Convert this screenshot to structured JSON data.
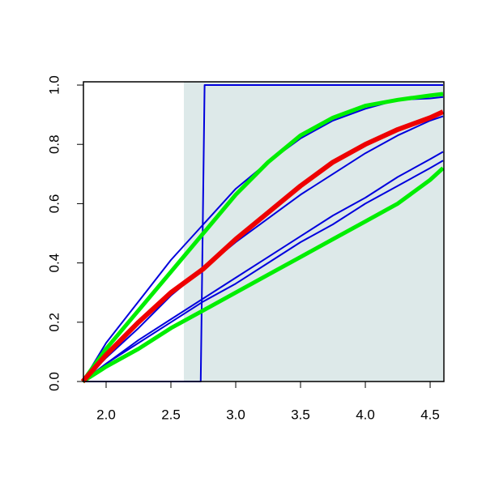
{
  "chart_data": {
    "type": "line",
    "x": [
      1.82,
      2.0,
      2.25,
      2.5,
      2.75,
      3.0,
      3.25,
      3.5,
      3.75,
      4.0,
      4.25,
      4.5,
      4.6
    ],
    "series": [
      {
        "color": "#0000dd",
        "line_width": 2,
        "x": [
          1.82,
          2.73,
          2.76,
          4.6
        ],
        "values": [
          0,
          0,
          1,
          1
        ]
      },
      {
        "color": "#0000dd",
        "line_width": 2,
        "values": [
          0,
          0.13,
          0.27,
          0.41,
          0.53,
          0.65,
          0.74,
          0.82,
          0.88,
          0.92,
          0.95,
          0.955,
          0.96
        ]
      },
      {
        "color": "#0000dd",
        "line_width": 2,
        "values": [
          0,
          0.08,
          0.18,
          0.29,
          0.38,
          0.47,
          0.55,
          0.63,
          0.7,
          0.77,
          0.83,
          0.88,
          0.895
        ]
      },
      {
        "color": "#0000dd",
        "line_width": 2,
        "values": [
          0,
          0.06,
          0.14,
          0.21,
          0.28,
          0.35,
          0.42,
          0.49,
          0.56,
          0.62,
          0.69,
          0.75,
          0.775
        ]
      },
      {
        "color": "#0000dd",
        "line_width": 2,
        "values": [
          0,
          0.06,
          0.13,
          0.2,
          0.27,
          0.33,
          0.4,
          0.47,
          0.53,
          0.6,
          0.66,
          0.72,
          0.745
        ]
      },
      {
        "color": "#00ee00",
        "line_width": 5,
        "values": [
          0,
          0.11,
          0.24,
          0.37,
          0.5,
          0.63,
          0.74,
          0.83,
          0.89,
          0.93,
          0.95,
          0.965,
          0.97
        ]
      },
      {
        "color": "#00ee00",
        "line_width": 5,
        "values": [
          0,
          0.05,
          0.11,
          0.18,
          0.24,
          0.3,
          0.36,
          0.42,
          0.48,
          0.54,
          0.6,
          0.68,
          0.72
        ]
      },
      {
        "color": "#ee0000",
        "line_width": 6,
        "values": [
          0,
          0.09,
          0.2,
          0.3,
          0.38,
          0.48,
          0.57,
          0.66,
          0.74,
          0.8,
          0.85,
          0.89,
          0.91
        ]
      }
    ],
    "shade": {
      "x": [
        2.6,
        4.6
      ],
      "color": "#dde9e9"
    },
    "xlim": [
      1.825,
      4.606
    ],
    "ylim": [
      0,
      1.011
    ],
    "xticks": [
      {
        "value": 2,
        "label": "2.0"
      },
      2.5,
      {
        "value": 3,
        "label": "3.0"
      },
      3.5,
      {
        "value": 4,
        "label": "4.0"
      },
      4.5
    ],
    "yticks": [
      {
        "value": 0,
        "label": "0.0"
      },
      0.2,
      0.4,
      0.6,
      0.8,
      {
        "value": 1,
        "label": "1.0"
      }
    ]
  }
}
